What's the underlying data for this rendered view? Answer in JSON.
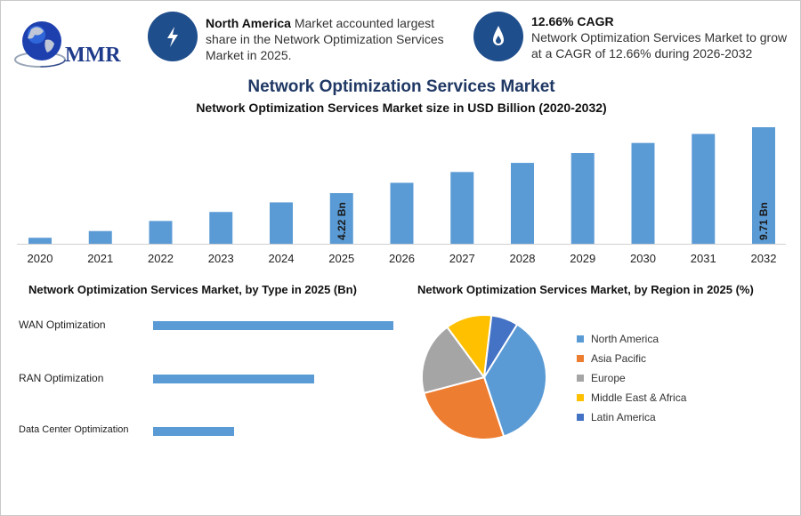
{
  "header": {
    "logo_text": "MMR",
    "info1": {
      "bold": "North America",
      "text": " Market accounted largest share in the Network Optimization Services Market in 2025."
    },
    "info2": {
      "bold": "12.66% CAGR",
      "text": "Network Optimization Services Market to grow at a CAGR of 12.66% during 2026-2032"
    },
    "colors": {
      "accent": "#1f4e8c",
      "title": "#1f3864"
    }
  },
  "main_title": "Network Optimization Services Market",
  "chart_data": [
    {
      "type": "bar",
      "title": "Network Optimization Services Market size in USD Billion (2020-2032)",
      "categories": [
        "2020",
        "2021",
        "2022",
        "2023",
        "2024",
        "2025",
        "2026",
        "2027",
        "2028",
        "2029",
        "2030",
        "2031",
        "2032"
      ],
      "values": [
        0.5,
        1.06,
        1.9,
        2.65,
        3.45,
        4.22,
        5.08,
        5.98,
        6.74,
        7.56,
        8.4,
        9.15,
        9.71
      ],
      "data_labels": {
        "2025": "4.22 Bn",
        "2032": "9.71 Bn"
      },
      "ylim": [
        0,
        10
      ],
      "color": "#5b9bd5",
      "xlabel": "",
      "ylabel": ""
    },
    {
      "type": "bar",
      "orientation": "horizontal",
      "title": "Network Optimization Services Market, by Type in 2025 (Bn)",
      "categories": [
        "WAN Optimization",
        "RAN Optimization",
        "Data Center Optimization"
      ],
      "values": [
        2.1,
        1.41,
        0.71
      ],
      "color": "#5b9bd5"
    },
    {
      "type": "pie",
      "title": "Network Optimization Services Market, by Region in 2025 (%)",
      "labels": [
        "North America",
        "Asia Pacific",
        "Europe",
        "Middle East & Africa",
        "Latin America"
      ],
      "values": [
        36,
        26,
        19,
        12,
        7
      ],
      "colors": [
        "#5b9bd5",
        "#ed7d31",
        "#a5a5a5",
        "#ffc000",
        "#4472c4"
      ],
      "legend": "right"
    }
  ]
}
